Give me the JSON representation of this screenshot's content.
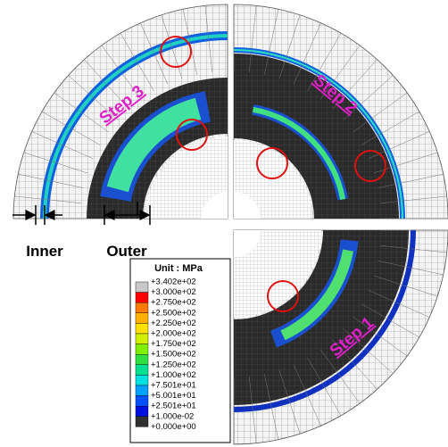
{
  "steps": {
    "step3": "Step 3",
    "step2": "Step 2",
    "step1": "Step 1"
  },
  "dimensions": {
    "inner": "Inner",
    "outer": "Outer"
  },
  "legend": {
    "unit": "Unit : MPa",
    "labels": [
      "+3.402e+02",
      "+3.000e+02",
      "+2.750e+02",
      "+2.500e+02",
      "+2.250e+02",
      "+2.000e+02",
      "+1.750e+02",
      "+1.500e+02",
      "+1.250e+02",
      "+1.000e+02",
      "+7.501e+01",
      "+5.001e+01",
      "+2.501e+01",
      "+1.000e-02",
      "+0.000e+00"
    ]
  }
}
